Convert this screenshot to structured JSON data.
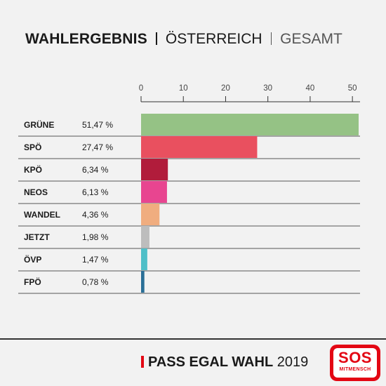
{
  "header": {
    "title_main": "WAHLERGEBNIS",
    "title_region": "ÖSTERREICH",
    "title_scope": "GESAMT"
  },
  "chart_data": {
    "type": "bar",
    "orientation": "horizontal",
    "xlim": [
      0,
      51.47
    ],
    "ticks": [
      "0",
      "10",
      "20",
      "30",
      "40",
      "50"
    ],
    "tick_values": [
      0,
      10,
      20,
      30,
      40,
      50
    ],
    "categories": [
      "GRÜNE",
      "SPÖ",
      "KPÖ",
      "NEOS",
      "WANDEL",
      "JETZT",
      "ÖVP",
      "FPÖ"
    ],
    "value_labels": [
      "51,47 %",
      "27,47 %",
      "6,34 %",
      "6,13 %",
      "4,36 %",
      "1,98 %",
      "1,47 %",
      "0,78 %"
    ],
    "values": [
      51.47,
      27.47,
      6.34,
      6.13,
      4.36,
      1.98,
      1.47,
      0.78
    ],
    "colors": [
      "#95c285",
      "#e9505f",
      "#b11c3b",
      "#e84590",
      "#f0ad7f",
      "#bdbdbd",
      "#4fbfc8",
      "#2a6f97"
    ],
    "grid": true
  },
  "footer": {
    "campaign_bold": "PASS EGAL WAHL",
    "campaign_year": "2019",
    "accent_color": "#e30613"
  },
  "logo": {
    "line1": "SOS",
    "line2": "MITMENSCH"
  }
}
